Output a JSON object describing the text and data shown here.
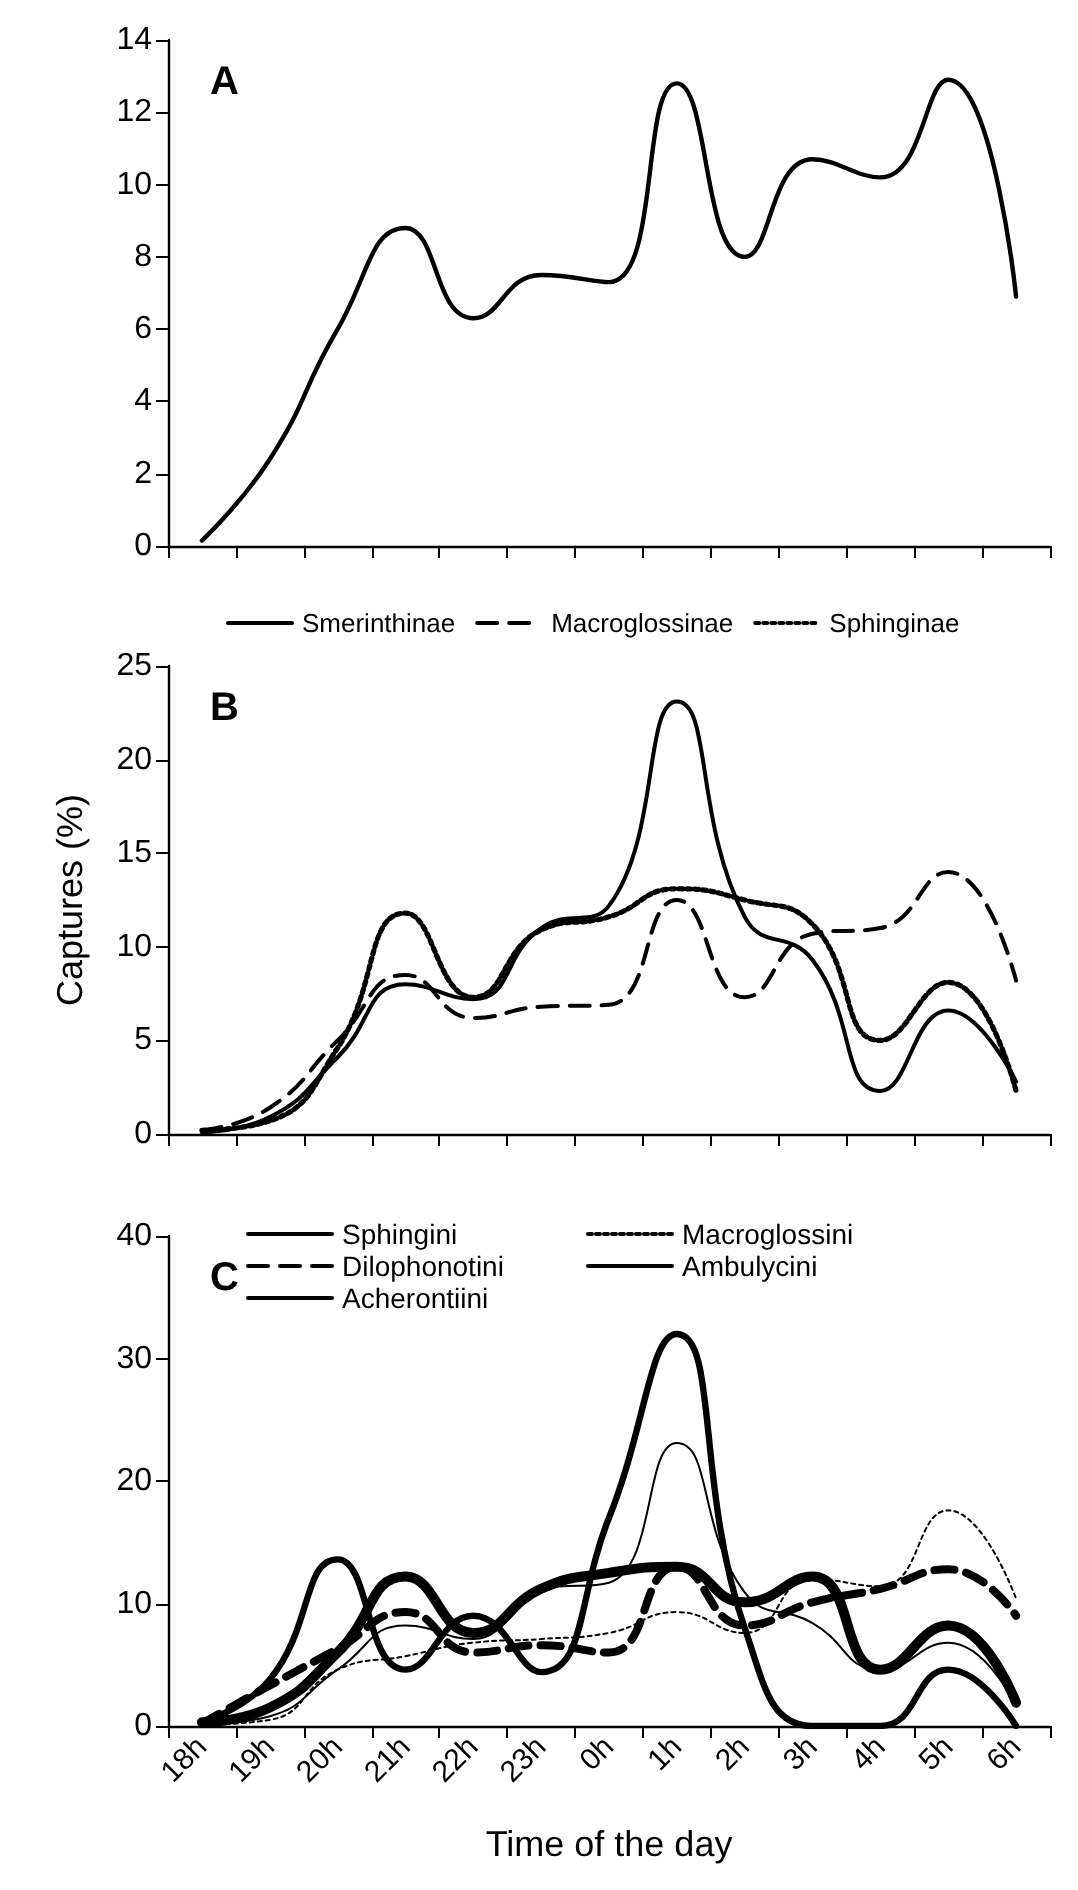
{
  "chart_data": [
    {
      "type": "line",
      "title": "A",
      "categories": [
        null,
        null,
        null,
        null,
        null,
        null,
        null,
        null,
        null,
        null,
        null,
        null,
        null
      ],
      "series": [
        {
          "color": "#000000",
          "line_style": "solid",
          "values": [
            0.15,
            2.4,
            6.0,
            8.8,
            6.3,
            7.5,
            7.3,
            12.8,
            8.0,
            10.7,
            10.2,
            12.9,
            6.9
          ]
        }
      ],
      "ylim": [
        0,
        14
      ],
      "yticks": [
        0,
        2,
        4,
        6,
        8,
        10,
        12,
        14
      ],
      "tick_labels": "y",
      "grid": false,
      "legend": false,
      "marker": "none"
    },
    {
      "type": "line",
      "title": "B",
      "ylabel": "Captures (%)",
      "categories": [
        null,
        null,
        null,
        null,
        null,
        null,
        null,
        null,
        null,
        null,
        null,
        null,
        null
      ],
      "series": [
        {
          "name": "Smerinthinae",
          "color": "#000000",
          "line_style": "solid",
          "values": [
            0.1,
            0.9,
            4.1,
            8.0,
            7.2,
            11.0,
            12.2,
            23.1,
            11.6,
            9.3,
            2.3,
            6.6,
            2.8
          ]
        },
        {
          "name": "Macroglossinae",
          "color": "#000000",
          "line_style": "dashed",
          "values": [
            0.2,
            1.4,
            5.0,
            8.5,
            6.2,
            6.8,
            6.9,
            12.5,
            7.3,
            10.7,
            11.0,
            14.0,
            8.2
          ]
        },
        {
          "name": "Sphinginae",
          "color": "#000000",
          "line_style": "dotted",
          "values": [
            0.2,
            0.7,
            4.6,
            11.8,
            7.3,
            10.9,
            11.6,
            13.1,
            12.5,
            11.2,
            5.0,
            8.1,
            2.3
          ]
        }
      ],
      "ylim": [
        0,
        25
      ],
      "yticks": [
        0,
        5,
        10,
        15,
        20,
        25
      ],
      "tick_labels": "y",
      "grid": false,
      "legend": "top",
      "marker": "none"
    },
    {
      "type": "line",
      "title": "C",
      "xlabel": "Time of the day",
      "categories": [
        "18h",
        "19h",
        "20h",
        "21h",
        "22h",
        "23h",
        "0h",
        "1h",
        "2h",
        "3h",
        "4h",
        "5h",
        "6h"
      ],
      "series": [
        {
          "name": "Sphingini",
          "color": "#000000",
          "line_style": "solid",
          "values": [
            0.3,
            1.5,
            6.0,
            12.2,
            7.6,
            11.2,
            12.5,
            13.0,
            10.1,
            12.2,
            4.6,
            8.2,
            1.9
          ]
        },
        {
          "name": "Macroglossini",
          "color": "#000000",
          "line_style": "dotted",
          "values": [
            0.1,
            0.5,
            4.6,
            5.7,
            6.8,
            7.1,
            7.6,
            9.3,
            7.6,
            12.0,
            11.4,
            17.6,
            10.4
          ]
        },
        {
          "name": "Dilophonotini",
          "color": "#000000",
          "line_style": "dashed",
          "values": [
            0.2,
            3.3,
            6.3,
            9.3,
            6.0,
            6.6,
            6.0,
            13.0,
            8.2,
            10.1,
            11.2,
            12.8,
            9.0
          ]
        },
        {
          "name": "Ambulycini",
          "color": "#000000",
          "line_style": "solid",
          "values": [
            0.1,
            0.8,
            4.6,
            8.2,
            7.1,
            11.2,
            11.7,
            23.1,
            10.9,
            8.4,
            4.6,
            6.8,
            1.6
          ]
        },
        {
          "name": "Acherontiini",
          "color": "#000000",
          "line_style": "solid",
          "values": [
            0.3,
            3.8,
            13.6,
            4.6,
            9.0,
            4.4,
            17.0,
            32.0,
            8.0,
            0,
            0,
            4.6,
            0
          ]
        }
      ],
      "ylim": [
        0,
        40
      ],
      "yticks": [
        0,
        10,
        20,
        30,
        40
      ],
      "grid": false,
      "legend": "top",
      "marker": "none"
    }
  ]
}
